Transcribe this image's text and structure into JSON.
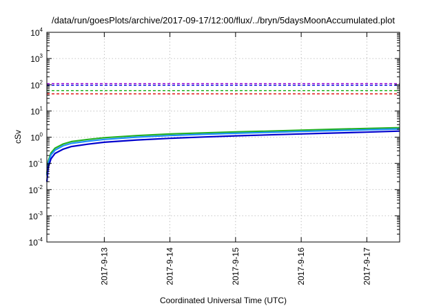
{
  "chart_data": {
    "type": "line",
    "title": "/data/run/goesPlots/archive/2017-09-17/12:00/flux/../bryn/5daysMoonAccumulated.plot",
    "xlabel": "Coordinated Universal Time (UTC)",
    "ylabel": "cSv",
    "x_scale": "time",
    "y_scale": "log",
    "xlim": [
      "2017-09-12 03:00",
      "2017-09-17 12:00"
    ],
    "ylim": [
      0.0001,
      10000
    ],
    "grid": true,
    "x_ticks": [
      {
        "date": "2017-09-13 00:00",
        "label": "2017-9-13"
      },
      {
        "date": "2017-09-14 00:00",
        "label": "2017-9-14"
      },
      {
        "date": "2017-09-15 00:00",
        "label": "2017-9-15"
      },
      {
        "date": "2017-09-16 00:00",
        "label": "2017-9-16"
      },
      {
        "date": "2017-09-17 00:00",
        "label": "2017-9-17"
      }
    ],
    "y_ticks": [
      {
        "value": 0.0001,
        "base": "10",
        "exp": "-4"
      },
      {
        "value": 0.001,
        "base": "10",
        "exp": "-3"
      },
      {
        "value": 0.01,
        "base": "10",
        "exp": "-2"
      },
      {
        "value": 0.1,
        "base": "10",
        "exp": "-1"
      },
      {
        "value": 1,
        "base": "10",
        "exp": "0"
      },
      {
        "value": 10,
        "base": "10",
        "exp": "1"
      },
      {
        "value": 100,
        "base": "10",
        "exp": "2"
      },
      {
        "value": 1000,
        "base": "10",
        "exp": "3"
      },
      {
        "value": 10000,
        "base": "10",
        "exp": "4"
      }
    ],
    "thresholds": [
      {
        "value": 110,
        "color": "#9400d3",
        "style": "dashed"
      },
      {
        "value": 95,
        "color": "#1a1ae6",
        "style": "dashed"
      },
      {
        "value": 60,
        "color": "#22b022",
        "style": "dashed"
      },
      {
        "value": 45,
        "color": "#e01010",
        "style": "dashed"
      }
    ],
    "series": [
      {
        "color": "#22b022",
        "x": [
          "2017-09-12 03:00",
          "2017-09-12 03:30",
          "2017-09-12 04:30",
          "2017-09-12 06:00",
          "2017-09-12 09:00",
          "2017-09-12 12:00",
          "2017-09-12 18:00",
          "2017-09-13 00:00",
          "2017-09-13 12:00",
          "2017-09-14 00:00",
          "2017-09-14 12:00",
          "2017-09-15 00:00",
          "2017-09-15 12:00",
          "2017-09-16 00:00",
          "2017-09-16 12:00",
          "2017-09-17 00:00",
          "2017-09-17 12:00"
        ],
        "values": [
          0.04,
          0.12,
          0.25,
          0.38,
          0.55,
          0.68,
          0.82,
          0.95,
          1.15,
          1.32,
          1.45,
          1.58,
          1.7,
          1.85,
          2.0,
          2.15,
          2.3
        ]
      },
      {
        "color": "#1e90ff",
        "x": [
          "2017-09-12 03:00",
          "2017-09-12 03:30",
          "2017-09-12 04:30",
          "2017-09-12 06:00",
          "2017-09-12 09:00",
          "2017-09-12 12:00",
          "2017-09-12 18:00",
          "2017-09-13 00:00",
          "2017-09-13 12:00",
          "2017-09-14 00:00",
          "2017-09-14 12:00",
          "2017-09-15 00:00",
          "2017-09-15 12:00",
          "2017-09-16 00:00",
          "2017-09-16 12:00",
          "2017-09-17 00:00",
          "2017-09-17 12:00"
        ],
        "values": [
          0.035,
          0.1,
          0.21,
          0.32,
          0.47,
          0.58,
          0.7,
          0.82,
          1.0,
          1.15,
          1.28,
          1.4,
          1.52,
          1.65,
          1.78,
          1.9,
          2.05
        ]
      },
      {
        "color": "#0000cd",
        "x": [
          "2017-09-12 03:00",
          "2017-09-12 03:30",
          "2017-09-12 04:30",
          "2017-09-12 06:00",
          "2017-09-12 09:00",
          "2017-09-12 12:00",
          "2017-09-12 18:00",
          "2017-09-13 00:00",
          "2017-09-13 12:00",
          "2017-09-14 00:00",
          "2017-09-14 12:00",
          "2017-09-15 00:00",
          "2017-09-15 12:00",
          "2017-09-16 00:00",
          "2017-09-16 12:00",
          "2017-09-17 00:00",
          "2017-09-17 12:00"
        ],
        "values": [
          0.02,
          0.07,
          0.15,
          0.24,
          0.35,
          0.44,
          0.54,
          0.64,
          0.78,
          0.9,
          1.01,
          1.12,
          1.22,
          1.33,
          1.44,
          1.55,
          1.7
        ]
      }
    ]
  }
}
